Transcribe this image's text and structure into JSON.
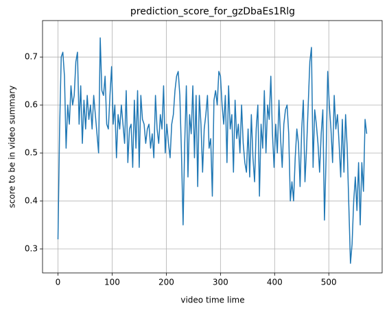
{
  "chart_data": {
    "type": "line",
    "title": "prediction_score_for_gzDbaEs1Rlg",
    "x_label": "video time lime",
    "y_label": "score to be in video summary",
    "xlim": [
      -28.5,
      598.5
    ],
    "ylim": [
      0.25,
      0.776
    ],
    "xticks": [
      0,
      100,
      200,
      300,
      400,
      500
    ],
    "yticks": [
      0.3,
      0.4,
      0.5,
      0.6,
      0.7
    ],
    "grid": true,
    "x": [
      0,
      3,
      6,
      9,
      12,
      15,
      18,
      21,
      24,
      27,
      30,
      33,
      36,
      39,
      42,
      45,
      48,
      51,
      54,
      57,
      60,
      63,
      66,
      69,
      72,
      75,
      78,
      81,
      84,
      87,
      90,
      93,
      96,
      99,
      102,
      105,
      108,
      111,
      114,
      117,
      120,
      123,
      126,
      129,
      132,
      135,
      138,
      141,
      144,
      147,
      150,
      153,
      156,
      159,
      162,
      165,
      168,
      171,
      174,
      177,
      180,
      183,
      186,
      189,
      192,
      195,
      198,
      201,
      204,
      207,
      210,
      213,
      216,
      219,
      222,
      225,
      228,
      231,
      234,
      237,
      240,
      243,
      246,
      249,
      252,
      255,
      258,
      261,
      264,
      267,
      270,
      273,
      276,
      279,
      282,
      285,
      288,
      291,
      294,
      297,
      300,
      303,
      306,
      309,
      312,
      315,
      318,
      321,
      324,
      327,
      330,
      333,
      336,
      339,
      342,
      345,
      348,
      351,
      354,
      357,
      360,
      363,
      366,
      369,
      372,
      375,
      378,
      381,
      384,
      387,
      390,
      393,
      396,
      399,
      402,
      405,
      408,
      411,
      414,
      417,
      420,
      423,
      426,
      429,
      432,
      435,
      438,
      441,
      444,
      447,
      450,
      453,
      456,
      459,
      462,
      465,
      468,
      471,
      474,
      477,
      480,
      483,
      486,
      489,
      492,
      495,
      498,
      501,
      504,
      507,
      510,
      513,
      516,
      519,
      522,
      525,
      528,
      531,
      534,
      537,
      540,
      543,
      546,
      549,
      552,
      555,
      558,
      561,
      564,
      567,
      570
    ],
    "series": [
      {
        "name": "prediction_score",
        "color": "#1f77b4",
        "values": [
          0.32,
          0.55,
          0.7,
          0.71,
          0.66,
          0.51,
          0.6,
          0.56,
          0.64,
          0.6,
          0.62,
          0.69,
          0.71,
          0.56,
          0.64,
          0.52,
          0.61,
          0.55,
          0.62,
          0.57,
          0.6,
          0.55,
          0.62,
          0.58,
          0.54,
          0.5,
          0.74,
          0.63,
          0.62,
          0.66,
          0.56,
          0.55,
          0.62,
          0.68,
          0.56,
          0.6,
          0.49,
          0.58,
          0.55,
          0.6,
          0.56,
          0.52,
          0.63,
          0.48,
          0.55,
          0.56,
          0.47,
          0.61,
          0.51,
          0.63,
          0.47,
          0.62,
          0.57,
          0.56,
          0.52,
          0.55,
          0.56,
          0.51,
          0.54,
          0.49,
          0.62,
          0.55,
          0.52,
          0.58,
          0.55,
          0.64,
          0.5,
          0.56,
          0.52,
          0.49,
          0.56,
          0.58,
          0.63,
          0.66,
          0.67,
          0.62,
          0.5,
          0.35,
          0.52,
          0.64,
          0.45,
          0.58,
          0.54,
          0.64,
          0.49,
          0.62,
          0.43,
          0.62,
          0.56,
          0.46,
          0.55,
          0.58,
          0.62,
          0.51,
          0.53,
          0.41,
          0.61,
          0.63,
          0.6,
          0.67,
          0.66,
          0.6,
          0.56,
          0.62,
          0.48,
          0.64,
          0.55,
          0.58,
          0.46,
          0.61,
          0.53,
          0.56,
          0.5,
          0.6,
          0.52,
          0.48,
          0.46,
          0.55,
          0.45,
          0.58,
          0.49,
          0.44,
          0.55,
          0.6,
          0.41,
          0.56,
          0.51,
          0.63,
          0.5,
          0.6,
          0.57,
          0.66,
          0.54,
          0.47,
          0.56,
          0.5,
          0.61,
          0.53,
          0.47,
          0.56,
          0.59,
          0.6,
          0.54,
          0.4,
          0.44,
          0.4,
          0.49,
          0.55,
          0.52,
          0.43,
          0.55,
          0.61,
          0.44,
          0.51,
          0.6,
          0.69,
          0.72,
          0.47,
          0.59,
          0.56,
          0.52,
          0.46,
          0.54,
          0.59,
          0.36,
          0.49,
          0.67,
          0.6,
          0.55,
          0.48,
          0.62,
          0.55,
          0.58,
          0.52,
          0.45,
          0.57,
          0.46,
          0.58,
          0.51,
          0.39,
          0.27,
          0.31,
          0.4,
          0.45,
          0.38,
          0.48,
          0.35,
          0.48,
          0.42,
          0.57,
          0.54
        ]
      }
    ]
  }
}
